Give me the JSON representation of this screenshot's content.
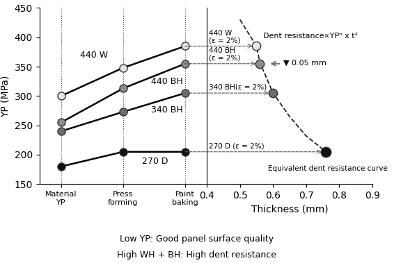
{
  "chart_data": [
    {
      "type": "line",
      "y_label": "YP (MPa)",
      "categories": [
        "Material\nYP",
        "Press\nforming",
        "Paint\nbaking"
      ],
      "ylim": [
        150,
        450
      ],
      "yticks": [
        150,
        200,
        250,
        300,
        350,
        400,
        450
      ],
      "marker": "o",
      "series": [
        {
          "name": "440 W",
          "color": "#e6e6e6",
          "values": [
            300,
            348,
            385
          ]
        },
        {
          "name": "440 BH",
          "color": "#8c8c8c",
          "values": [
            255,
            313,
            355
          ]
        },
        {
          "name": "340 BH",
          "color": "#6e6e6e",
          "values": [
            240,
            273,
            305
          ]
        },
        {
          "name": "270 D",
          "color": "#111111",
          "values": [
            180,
            205,
            205
          ]
        }
      ]
    },
    {
      "type": "scatter",
      "x_label": "Thickness (mm)",
      "xlim": [
        0.4,
        0.9
      ],
      "xticks": [
        0.4,
        0.5,
        0.6,
        0.7,
        0.8,
        0.9
      ],
      "ylim": [
        150,
        450
      ],
      "yticks": [
        150,
        200,
        250,
        300,
        350,
        400,
        450
      ],
      "tick_labels": "x",
      "series": [
        {
          "name": "440 W\n(ε = 2%)",
          "color": "#e6e6e6",
          "x": [
            0.55
          ],
          "values": [
            385
          ]
        },
        {
          "name": "440 BH\n(ε = 2%)",
          "color": "#8c8c8c",
          "x": [
            0.56
          ],
          "values": [
            355
          ]
        },
        {
          "name": "340 BH(ε = 2%)",
          "color": "#6e6e6e",
          "x": [
            0.6
          ],
          "values": [
            305
          ]
        },
        {
          "name": "270 D (ε = 2%)",
          "color": "#111111",
          "x": [
            0.76
          ],
          "values": [
            205
          ]
        },
        {
          "name": "Equivalent dent resistance curve",
          "type": "line",
          "line_style": "dashed",
          "color": "#222222",
          "x": [
            0.5,
            0.55,
            0.56,
            0.6,
            0.65,
            0.7,
            0.76
          ],
          "values": [
            430,
            385,
            357,
            305,
            265,
            232,
            205
          ]
        }
      ],
      "annotations": [
        "Dent resistance∝YPⁿ x t²",
        "▼ 0.05 mm"
      ]
    }
  ],
  "caption": [
    "Low YP: Good panel surface quality",
    "High WH + BH: High dent resistance"
  ]
}
